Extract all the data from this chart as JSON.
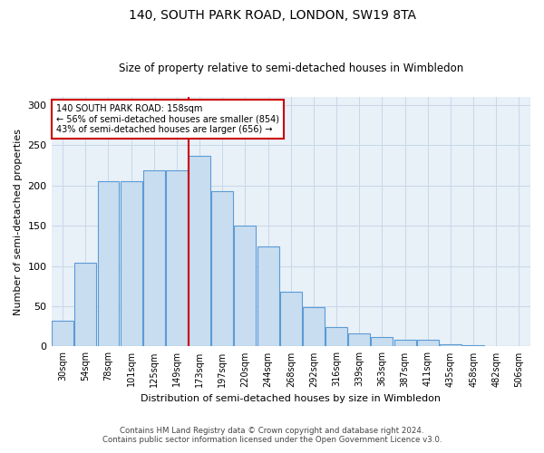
{
  "title1": "140, SOUTH PARK ROAD, LONDON, SW19 8TA",
  "title2": "Size of property relative to semi-detached houses in Wimbledon",
  "xlabel": "Distribution of semi-detached houses by size in Wimbledon",
  "ylabel": "Number of semi-detached properties",
  "footnote1": "Contains HM Land Registry data © Crown copyright and database right 2024.",
  "footnote2": "Contains public sector information licensed under the Open Government Licence v3.0.",
  "bar_labels": [
    "30sqm",
    "54sqm",
    "78sqm",
    "101sqm",
    "125sqm",
    "149sqm",
    "173sqm",
    "197sqm",
    "220sqm",
    "244sqm",
    "268sqm",
    "292sqm",
    "316sqm",
    "339sqm",
    "363sqm",
    "387sqm",
    "411sqm",
    "435sqm",
    "458sqm",
    "482sqm",
    "506sqm"
  ],
  "bar_heights": [
    32,
    104,
    205,
    205,
    219,
    219,
    237,
    193,
    150,
    124,
    68,
    49,
    24,
    16,
    12,
    8,
    8,
    3,
    2,
    1,
    1
  ],
  "bar_color": "#c9ddf0",
  "bar_edge_color": "#5b9bd5",
  "vline_color": "#cc0000",
  "annotation_text": "140 SOUTH PARK ROAD: 158sqm\n← 56% of semi-detached houses are smaller (854)\n43% of semi-detached houses are larger (656) →",
  "annotation_box_color": "#ffffff",
  "annotation_box_edge": "#cc0000",
  "ylim": [
    0,
    310
  ],
  "background_color": "#ffffff",
  "plot_bg_color": "#e8f0f8",
  "grid_color": "#c8d8e8"
}
